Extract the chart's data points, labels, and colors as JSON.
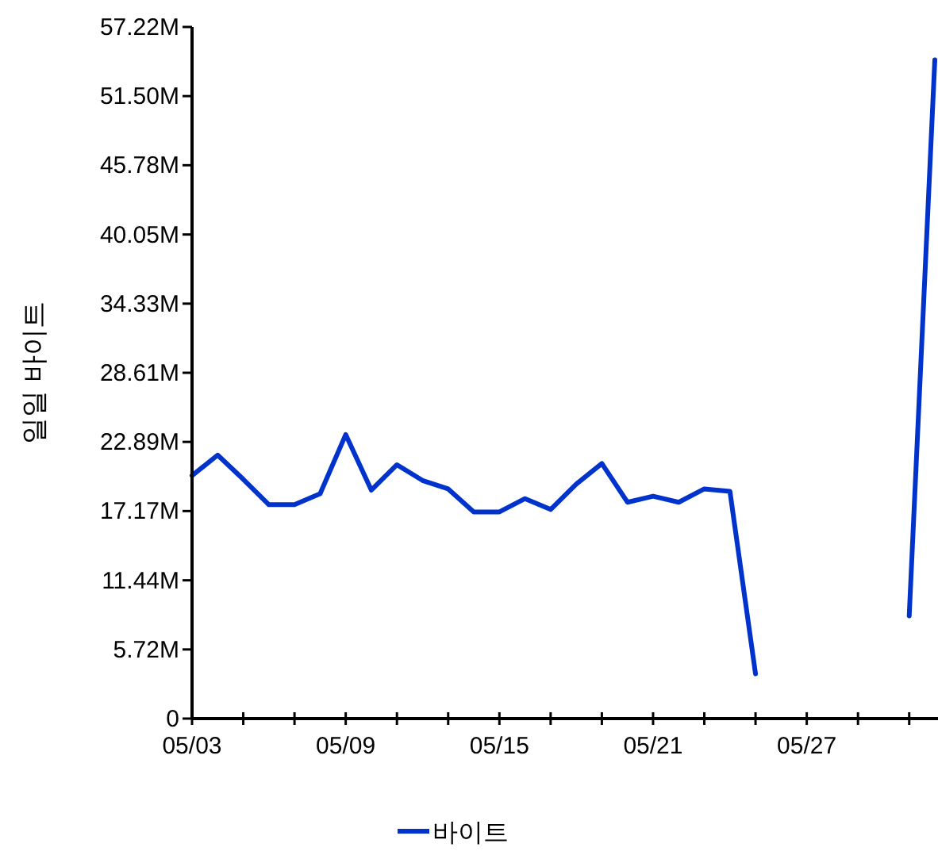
{
  "chart_data": {
    "type": "line",
    "ylabel": "일일 바이트",
    "legend": "bottom",
    "grid": false,
    "marker": "none",
    "line_style": "solid",
    "x": [
      "--05-03",
      "--05-04",
      "--05-05",
      "--05-06",
      "--05-07",
      "--05-08",
      "--05-09",
      "--05-10",
      "--05-11",
      "--05-12",
      "--05-13",
      "--05-14",
      "--05-15",
      "--05-16",
      "--05-17",
      "--05-18",
      "--05-19",
      "--05-20",
      "--05-21",
      "--05-22",
      "--05-23",
      "--05-24",
      "--05-25",
      "--05-26",
      "--05-27",
      "--05-28",
      "--05-29",
      "--05-30",
      "--05-31",
      "--06-01"
    ],
    "series": [
      {
        "name": "바이트",
        "color": "#0033cc",
        "values": [
          20.1,
          21.8,
          19.8,
          17.7,
          17.7,
          18.6,
          23.5,
          18.9,
          21.0,
          19.7,
          19.0,
          17.1,
          17.1,
          18.2,
          17.3,
          19.4,
          21.1,
          17.9,
          18.4,
          17.9,
          19.0,
          18.8,
          3.7,
          null,
          null,
          null,
          null,
          null,
          8.5,
          54.5
        ]
      }
    ],
    "xlim": [
      "--05-03",
      "--06-01"
    ],
    "xticks": [
      {
        "value": "--05-03",
        "label": "05/03"
      },
      {
        "value": "--05-05",
        "label": null
      },
      {
        "value": "--05-07",
        "label": null
      },
      {
        "value": "--05-09",
        "label": "05/09"
      },
      {
        "value": "--05-11",
        "label": null
      },
      {
        "value": "--05-13",
        "label": null
      },
      {
        "value": "--05-15",
        "label": "05/15"
      },
      {
        "value": "--05-17",
        "label": null
      },
      {
        "value": "--05-19",
        "label": null
      },
      {
        "value": "--05-21",
        "label": "05/21"
      },
      {
        "value": "--05-23",
        "label": null
      },
      {
        "value": "--05-25",
        "label": null
      },
      {
        "value": "--05-27",
        "label": "05/27"
      },
      {
        "value": "--05-29",
        "label": null
      },
      {
        "value": "--05-31",
        "label": null
      }
    ],
    "ylim": [
      0,
      57.22
    ],
    "yticks": [
      0,
      {
        "value": 5.72,
        "label": "5.72M"
      },
      {
        "value": 11.44,
        "label": "11.44M"
      },
      {
        "value": 17.17,
        "label": "17.17M"
      },
      {
        "value": 22.89,
        "label": "22.89M"
      },
      {
        "value": 28.61,
        "label": "28.61M"
      },
      {
        "value": 34.33,
        "label": "34.33M"
      },
      {
        "value": 40.05,
        "label": "40.05M"
      },
      {
        "value": 45.78,
        "label": "45.78M"
      },
      {
        "value": 51.5,
        "label": "51.50M"
      },
      {
        "value": 57.22,
        "label": "57.22M"
      }
    ]
  }
}
